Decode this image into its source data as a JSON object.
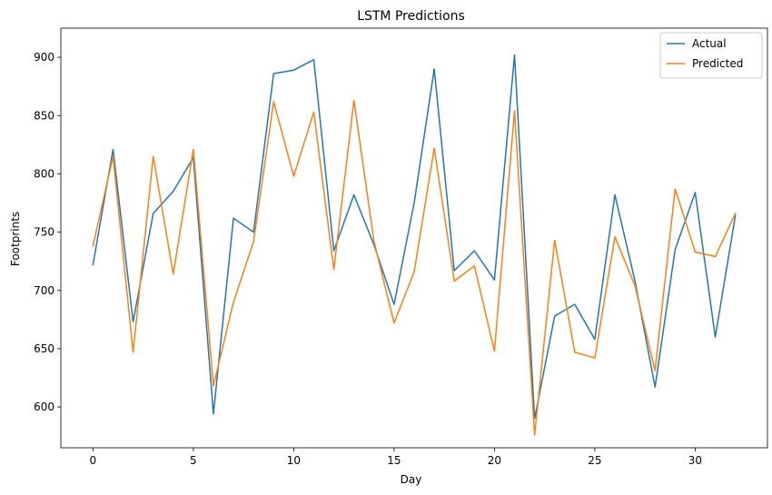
{
  "chart_data": {
    "type": "line",
    "title": "LSTM Predictions",
    "xlabel": "Day",
    "ylabel": "Footprints",
    "xlim": [
      -1.6,
      33.6
    ],
    "ylim": [
      565,
      925
    ],
    "xticks": [
      0,
      5,
      10,
      15,
      20,
      25,
      30
    ],
    "yticks": [
      600,
      650,
      700,
      750,
      800,
      850,
      900
    ],
    "grid": false,
    "legend_position": "top-right",
    "x": [
      0,
      1,
      2,
      3,
      4,
      5,
      6,
      7,
      8,
      9,
      10,
      11,
      12,
      13,
      14,
      15,
      16,
      17,
      18,
      19,
      20,
      21,
      22,
      23,
      24,
      25,
      26,
      27,
      28,
      29,
      30,
      31,
      32
    ],
    "series": [
      {
        "name": "Actual",
        "color": "#1f77b4",
        "values": [
          722,
          821,
          673,
          766,
          785,
          814,
          594,
          762,
          750,
          886,
          889,
          898,
          734,
          782,
          739,
          688,
          775,
          890,
          717,
          734,
          709,
          902,
          590,
          678,
          688,
          658,
          782,
          708,
          617,
          735,
          784,
          660,
          764
        ]
      },
      {
        "name": "Predicted",
        "color": "#ff7f0e",
        "values": [
          738,
          815,
          647,
          815,
          714,
          821,
          618,
          690,
          742,
          862,
          798,
          853,
          718,
          863,
          742,
          672,
          716,
          822,
          708,
          721,
          648,
          854,
          576,
          743,
          647,
          642,
          746,
          704,
          631,
          787,
          733,
          729,
          766
        ]
      }
    ]
  }
}
